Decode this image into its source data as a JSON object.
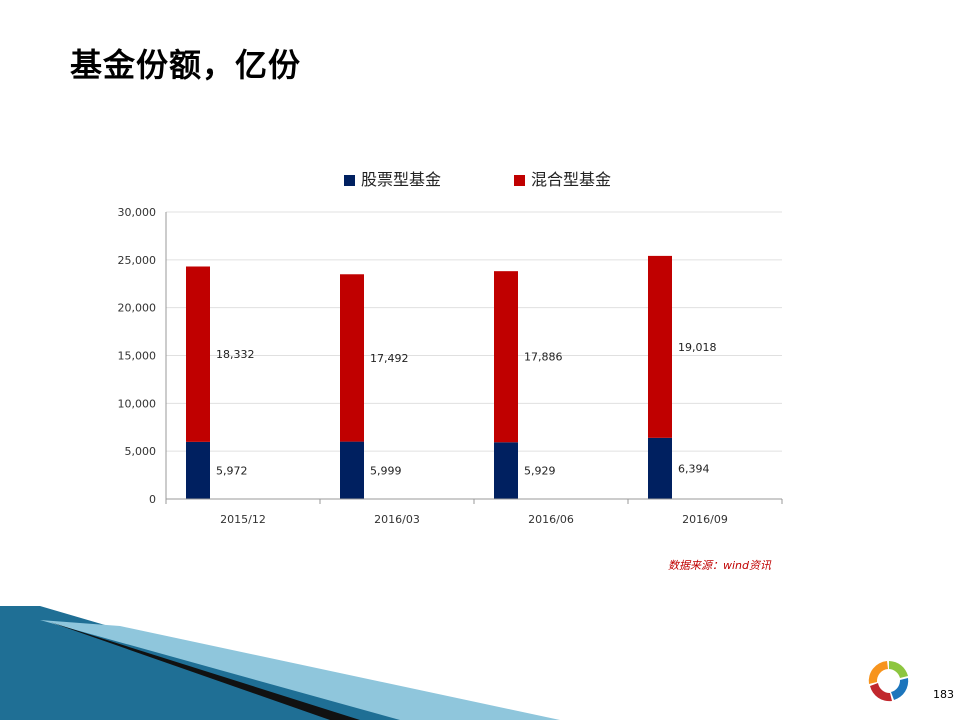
{
  "page": {
    "title": "基金份额，亿份",
    "source": "数据来源：wind资讯",
    "page_number": "183"
  },
  "colors": {
    "equity": "#002060",
    "hybrid": "#c00000",
    "grid": "#e0e0e0"
  },
  "chart_data": {
    "type": "bar",
    "stacked": true,
    "categories": [
      "2015/12",
      "2016/03",
      "2016/06",
      "2016/09"
    ],
    "series": [
      {
        "name": "股票型基金",
        "values": [
          5972,
          5999,
          5929,
          6394
        ],
        "labels": [
          "5,972",
          "5,999",
          "5,929",
          "6,394"
        ]
      },
      {
        "name": "混合型基金",
        "values": [
          18332,
          17492,
          17886,
          19018
        ],
        "labels": [
          "18,332",
          "17,492",
          "17,886",
          "19,018"
        ]
      }
    ],
    "ylim": [
      0,
      30000
    ],
    "yticks": [
      0,
      5000,
      10000,
      15000,
      20000,
      25000,
      30000
    ],
    "ytick_labels": [
      "0",
      "5,000",
      "10,000",
      "15,000",
      "20,000",
      "25,000",
      "30,000"
    ],
    "legend_position": "top",
    "grid": true
  }
}
